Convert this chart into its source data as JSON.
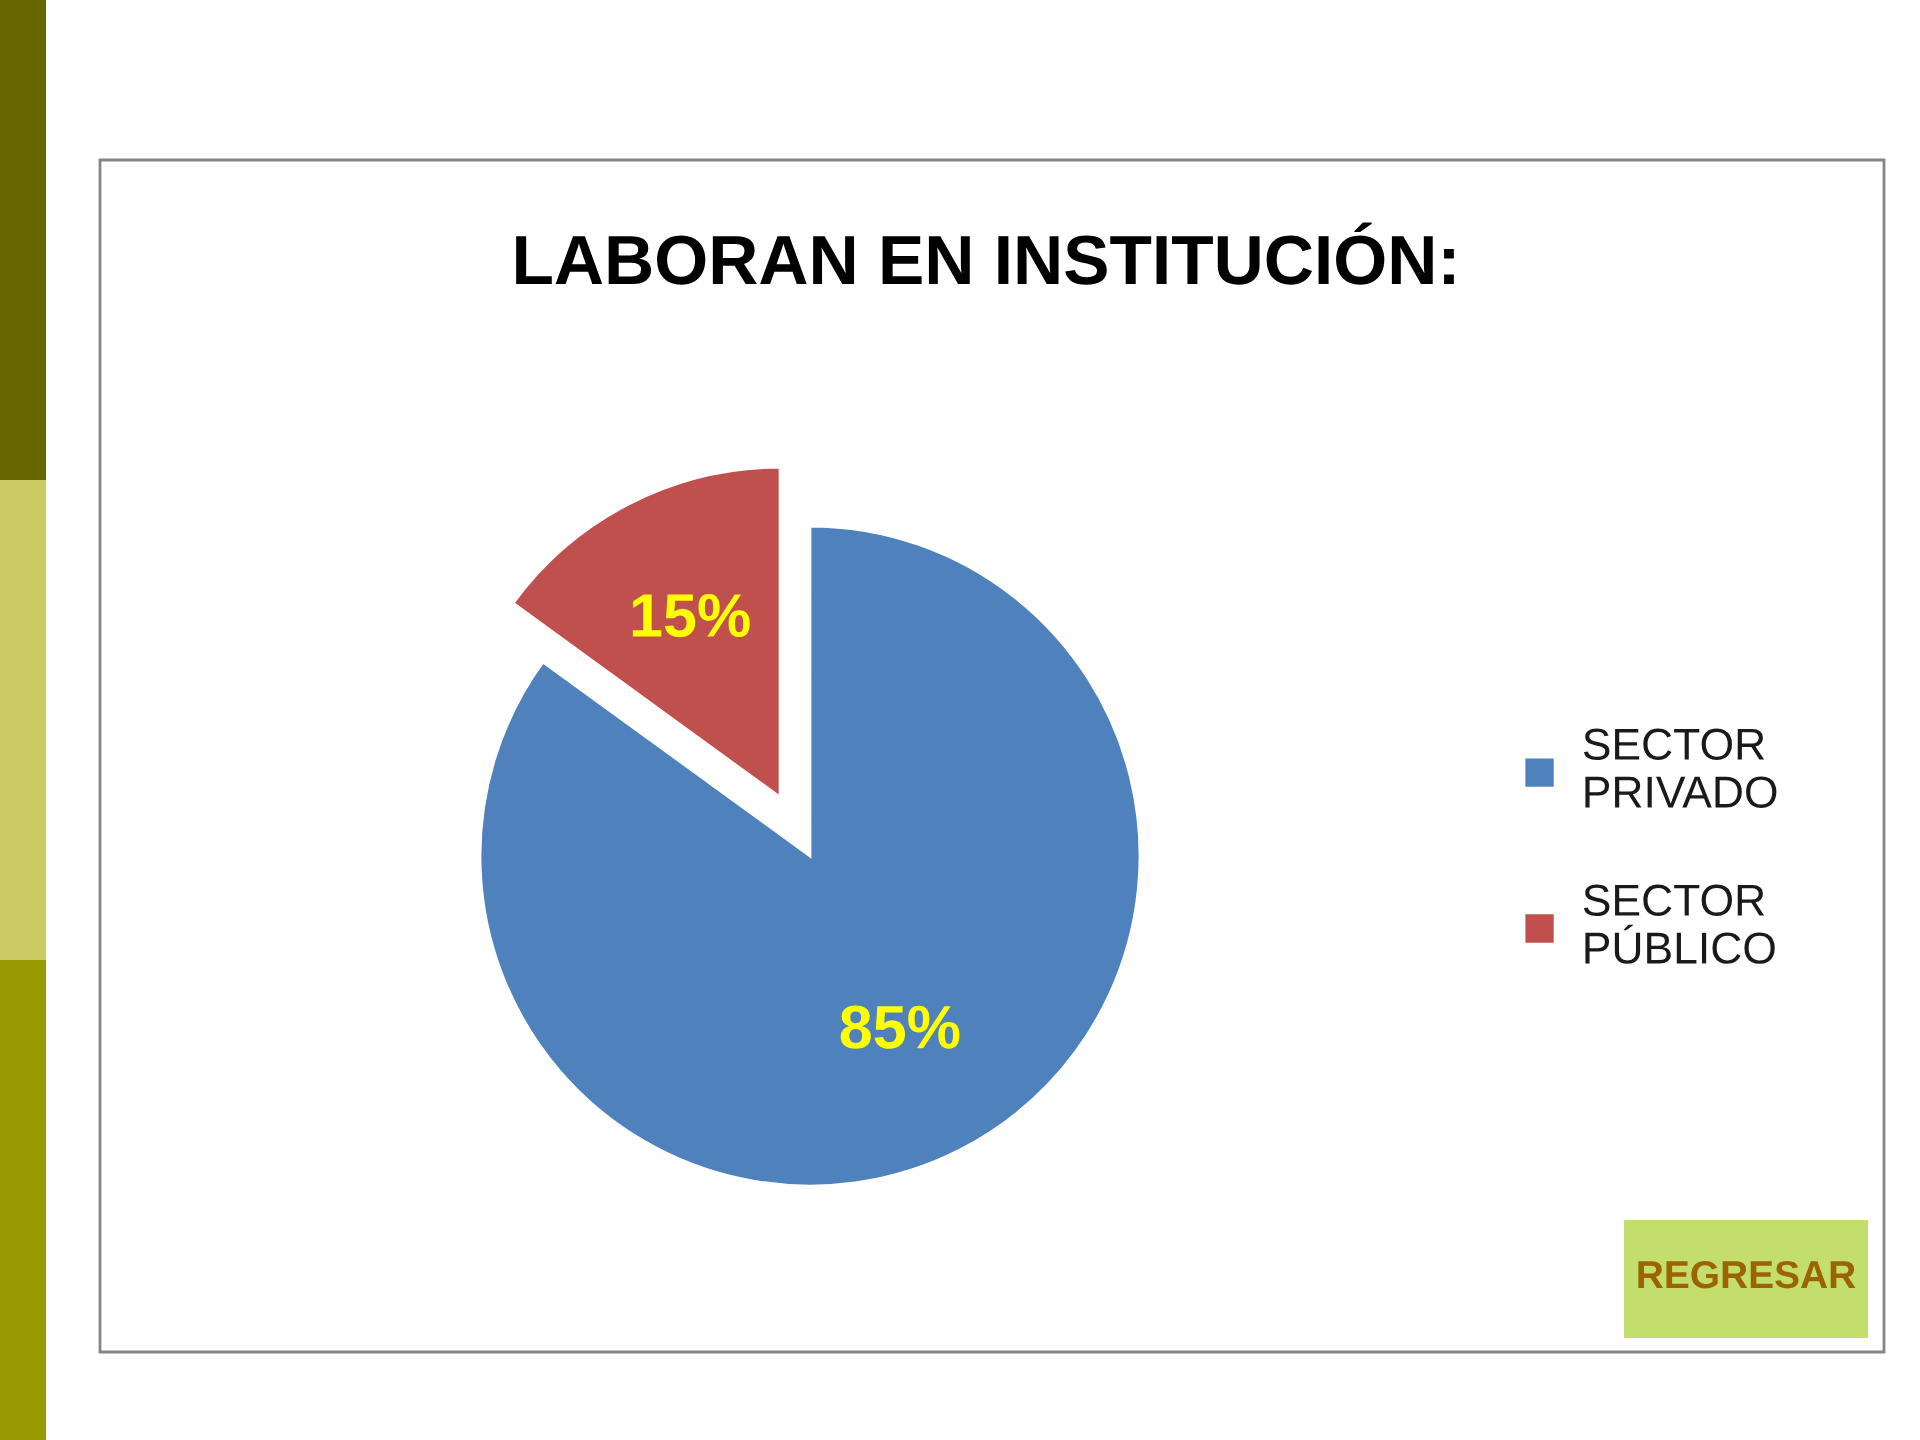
{
  "chart_data": {
    "type": "pie",
    "title": "LABORAN EN INSTITUCIÓN:",
    "categories": [
      "SECTOR PRIVADO",
      "SECTOR PÚBLICO"
    ],
    "values": [
      85,
      15
    ],
    "colors": [
      "#4f81bd",
      "#c0504d"
    ],
    "value_labels": [
      "85%",
      "15%"
    ],
    "legend": "right",
    "annotations": [
      "REGRESAR"
    ]
  }
}
